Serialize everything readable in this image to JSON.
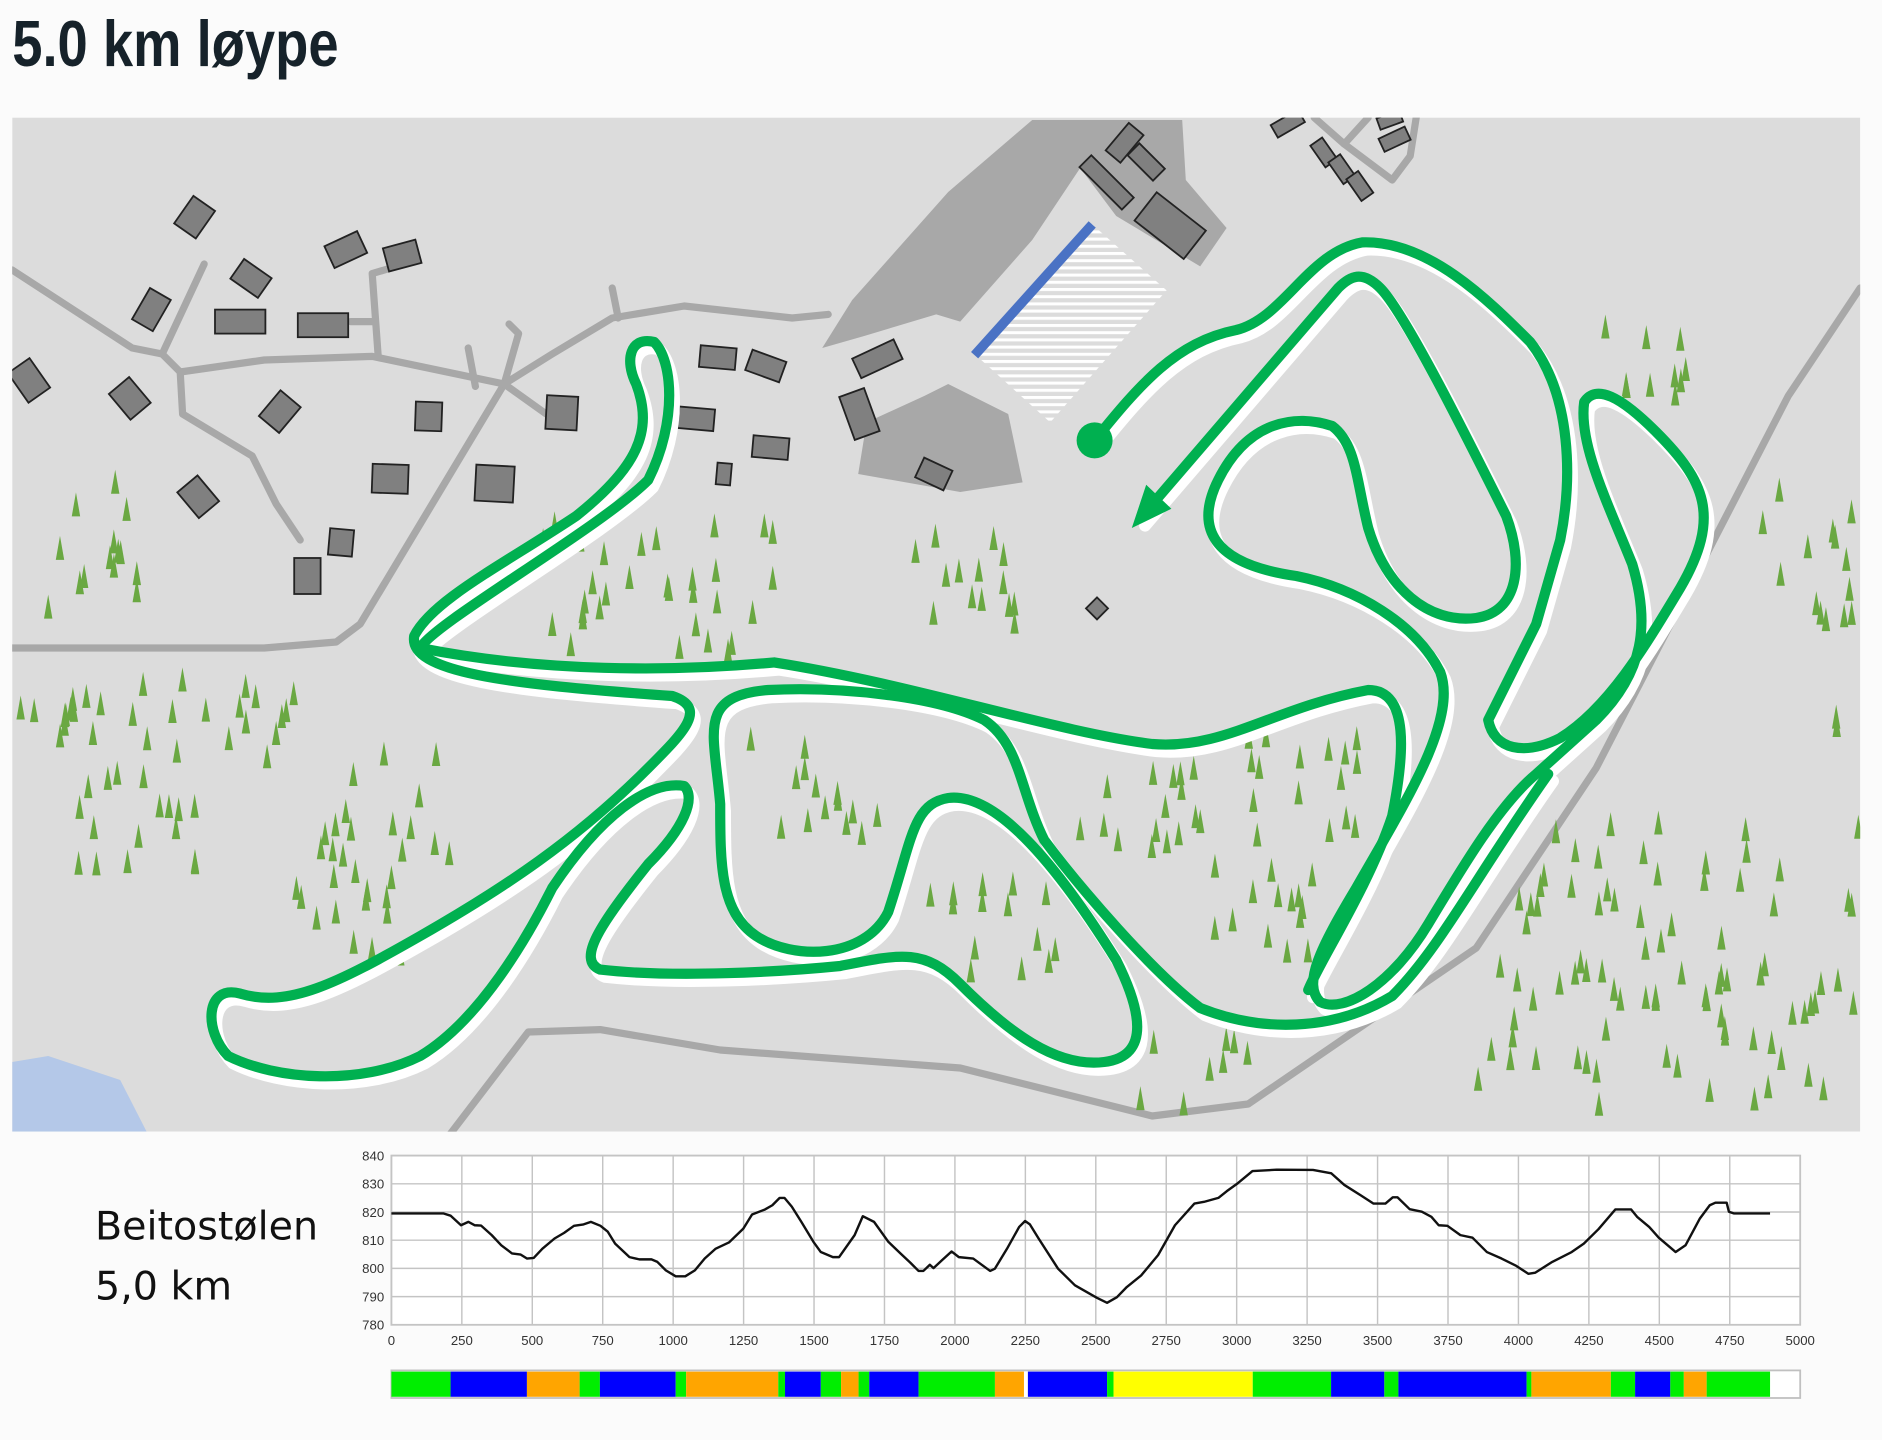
{
  "title": "5.0 km løype",
  "colors": {
    "map_background": "#dcdcdc",
    "road": "#a8a8a8",
    "building": "#808080",
    "track": "#00b050",
    "tree": "#6aa842",
    "stadium_line": "#4a72c4",
    "water": "#b4c8e8",
    "ski_area": "#a8a8a8"
  },
  "map": {
    "icons": [
      "start-dot-icon",
      "direction-arrow-icon",
      "tree-icon",
      "building-icon",
      "lake"
    ]
  },
  "profile": {
    "place": "Beitostølen",
    "distance": "5,0 km"
  },
  "chart_data": {
    "type": "line",
    "title": "",
    "xlabel": "",
    "ylabel": "",
    "xlim": [
      0,
      5000
    ],
    "ylim": [
      780,
      840
    ],
    "grid": true,
    "x_ticks": [
      "0",
      "250",
      "500",
      "750",
      "1000",
      "1250",
      "1500",
      "1750",
      "2000",
      "2250",
      "2500",
      "2750",
      "3000",
      "3250",
      "3500",
      "3750",
      "4000",
      "4250",
      "4500",
      "4750",
      "5000"
    ],
    "y_ticks": [
      "840",
      "830",
      "820",
      "810",
      "800",
      "790",
      "780"
    ],
    "series": [
      {
        "points": [
          [
            0,
            819.5
          ],
          [
            184,
            819.5
          ],
          [
            210,
            818.7
          ],
          [
            247,
            815.3
          ],
          [
            273,
            816.5
          ],
          [
            296,
            815.3
          ],
          [
            318,
            815.2
          ],
          [
            356,
            811.8
          ],
          [
            390,
            808.2
          ],
          [
            428,
            805.3
          ],
          [
            459,
            804.9
          ],
          [
            481,
            803.5
          ],
          [
            505,
            803.7
          ],
          [
            536,
            807
          ],
          [
            579,
            810.6
          ],
          [
            613,
            812.6
          ],
          [
            648,
            815.1
          ],
          [
            682,
            815.6
          ],
          [
            708,
            816.5
          ],
          [
            742,
            815.1
          ],
          [
            768,
            813
          ],
          [
            794,
            808.8
          ],
          [
            845,
            804
          ],
          [
            880,
            803.2
          ],
          [
            923,
            803.2
          ],
          [
            944,
            802.3
          ],
          [
            974,
            799.3
          ],
          [
            1009,
            797.2
          ],
          [
            1043,
            797.2
          ],
          [
            1077,
            799.3
          ],
          [
            1112,
            803.5
          ],
          [
            1151,
            807
          ],
          [
            1198,
            809.2
          ],
          [
            1249,
            814.1
          ],
          [
            1280,
            819.1
          ],
          [
            1326,
            820.9
          ],
          [
            1352,
            822.4
          ],
          [
            1378,
            825
          ],
          [
            1395,
            825
          ],
          [
            1421,
            821.9
          ],
          [
            1455,
            816.5
          ],
          [
            1498,
            809.4
          ],
          [
            1524,
            805.8
          ],
          [
            1567,
            804
          ],
          [
            1589,
            804
          ],
          [
            1610,
            807
          ],
          [
            1644,
            811.8
          ],
          [
            1673,
            818.5
          ],
          [
            1713,
            816.5
          ],
          [
            1764,
            809.4
          ],
          [
            1807,
            805.3
          ],
          [
            1842,
            802
          ],
          [
            1871,
            799.1
          ],
          [
            1888,
            799.1
          ],
          [
            1911,
            801.3
          ],
          [
            1924,
            800.1
          ],
          [
            1953,
            802.8
          ],
          [
            1988,
            806
          ],
          [
            2014,
            804
          ],
          [
            2065,
            803.5
          ],
          [
            2125,
            799.1
          ],
          [
            2142,
            799.9
          ],
          [
            2185,
            807
          ],
          [
            2228,
            814.7
          ],
          [
            2249,
            816.8
          ],
          [
            2266,
            815.6
          ],
          [
            2297,
            810.6
          ],
          [
            2366,
            799.9
          ],
          [
            2426,
            794
          ],
          [
            2503,
            789.6
          ],
          [
            2540,
            787.8
          ],
          [
            2575,
            789.8
          ],
          [
            2610,
            793.4
          ],
          [
            2661,
            797.5
          ],
          [
            2721,
            804.7
          ],
          [
            2781,
            815.3
          ],
          [
            2850,
            823
          ],
          [
            2884,
            823.6
          ],
          [
            2935,
            825
          ],
          [
            2965,
            827.4
          ],
          [
            3004,
            830.2
          ],
          [
            3056,
            834.5
          ],
          [
            3090,
            834.7
          ],
          [
            3142,
            835
          ],
          [
            3271,
            834.9
          ],
          [
            3336,
            833.7
          ],
          [
            3382,
            829.6
          ],
          [
            3442,
            825.8
          ],
          [
            3485,
            823
          ],
          [
            3528,
            823
          ],
          [
            3554,
            825.2
          ],
          [
            3571,
            825.2
          ],
          [
            3614,
            821
          ],
          [
            3657,
            820.1
          ],
          [
            3691,
            818.3
          ],
          [
            3717,
            815.3
          ],
          [
            3748,
            815.1
          ],
          [
            3794,
            811.8
          ],
          [
            3837,
            810.9
          ],
          [
            3888,
            805.8
          ],
          [
            3940,
            803.5
          ],
          [
            3992,
            800.9
          ],
          [
            4035,
            798.1
          ],
          [
            4060,
            798.5
          ],
          [
            4120,
            802.3
          ],
          [
            4189,
            805.8
          ],
          [
            4232,
            808.8
          ],
          [
            4284,
            813.9
          ],
          [
            4344,
            820.9
          ],
          [
            4400,
            820.9
          ],
          [
            4421,
            818.3
          ],
          [
            4464,
            814.7
          ],
          [
            4498,
            810.9
          ],
          [
            4558,
            805.8
          ],
          [
            4593,
            808.2
          ],
          [
            4644,
            817.7
          ],
          [
            4679,
            822.4
          ],
          [
            4699,
            823.3
          ],
          [
            4739,
            823.3
          ],
          [
            4747,
            820.1
          ],
          [
            4764,
            819.5
          ],
          [
            4893,
            819.5
          ]
        ]
      }
    ],
    "difficulty_bar": [
      {
        "from": 0,
        "to": 210,
        "color": "#00ee00"
      },
      {
        "from": 210,
        "to": 481,
        "color": "#0000ff"
      },
      {
        "from": 481,
        "to": 668,
        "color": "#ffa500"
      },
      {
        "from": 668,
        "to": 740,
        "color": "#00ee00"
      },
      {
        "from": 740,
        "to": 1009,
        "color": "#0000ff"
      },
      {
        "from": 1009,
        "to": 1046,
        "color": "#00ee00"
      },
      {
        "from": 1046,
        "to": 1373,
        "color": "#ffa500"
      },
      {
        "from": 1373,
        "to": 1397,
        "color": "#00ee00"
      },
      {
        "from": 1397,
        "to": 1524,
        "color": "#0000ff"
      },
      {
        "from": 1524,
        "to": 1596,
        "color": "#00ee00"
      },
      {
        "from": 1596,
        "to": 1658,
        "color": "#ffa500"
      },
      {
        "from": 1658,
        "to": 1696,
        "color": "#00ee00"
      },
      {
        "from": 1696,
        "to": 1871,
        "color": "#0000ff"
      },
      {
        "from": 1871,
        "to": 2142,
        "color": "#00ee00"
      },
      {
        "from": 2142,
        "to": 2245,
        "color": "#ffa500"
      },
      {
        "from": 2259,
        "to": 2540,
        "color": "#0000ff"
      },
      {
        "from": 2540,
        "to": 2563,
        "color": "#00ee00"
      },
      {
        "from": 2563,
        "to": 3057,
        "color": "#ffff00"
      },
      {
        "from": 3057,
        "to": 3335,
        "color": "#00ee00"
      },
      {
        "from": 3335,
        "to": 3524,
        "color": "#0000ff"
      },
      {
        "from": 3524,
        "to": 3574,
        "color": "#00ee00"
      },
      {
        "from": 3574,
        "to": 4029,
        "color": "#0000ff"
      },
      {
        "from": 4029,
        "to": 4046,
        "color": "#00ee00"
      },
      {
        "from": 4046,
        "to": 4328,
        "color": "#ffa500"
      },
      {
        "from": 4328,
        "to": 4414,
        "color": "#00ee00"
      },
      {
        "from": 4414,
        "to": 4539,
        "color": "#0000ff"
      },
      {
        "from": 4539,
        "to": 4587,
        "color": "#00ee00"
      },
      {
        "from": 4587,
        "to": 4668,
        "color": "#ffa500"
      },
      {
        "from": 4668,
        "to": 4893,
        "color": "#00ee00"
      }
    ]
  }
}
